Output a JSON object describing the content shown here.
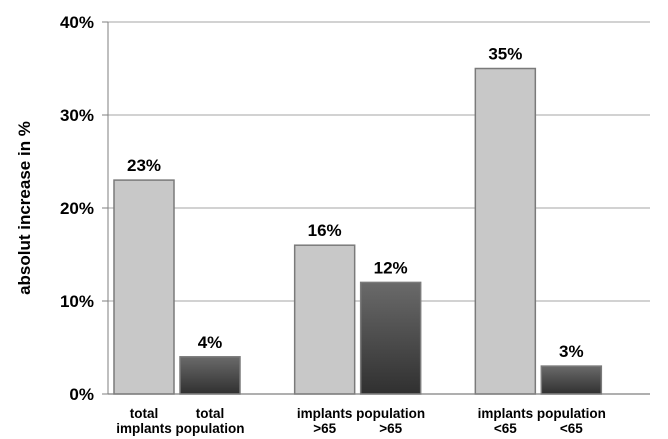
{
  "chart_data": {
    "type": "bar",
    "ylabel": "absolut increase in %",
    "ylim": [
      0,
      40
    ],
    "yticks": [
      0,
      10,
      20,
      30,
      40
    ],
    "ytick_labels": [
      "0%",
      "10%",
      "20%",
      "30%",
      "40%"
    ],
    "grid": true,
    "bars": [
      {
        "group": 0,
        "label": [
          "total",
          "implants"
        ],
        "value": 23,
        "value_label": "23%",
        "kind": "implants"
      },
      {
        "group": 0,
        "label": [
          "total",
          "population"
        ],
        "value": 4,
        "value_label": "4%",
        "kind": "population"
      },
      {
        "group": 1,
        "label": [
          "implants",
          ">65"
        ],
        "value": 16,
        "value_label": "16%",
        "kind": "implants"
      },
      {
        "group": 1,
        "label": [
          "population",
          ">65"
        ],
        "value": 12,
        "value_label": "12%",
        "kind": "population"
      },
      {
        "group": 2,
        "label": [
          "implants",
          "<65"
        ],
        "value": 35,
        "value_label": "35%",
        "kind": "implants"
      },
      {
        "group": 2,
        "label": [
          "population",
          "<65"
        ],
        "value": 3,
        "value_label": "3%",
        "kind": "population"
      }
    ],
    "colors": {
      "implants": "#c8c8c8",
      "population": "#4a4a4a",
      "grid": "#a6a6a6",
      "axis": "#7f7f7f"
    }
  }
}
